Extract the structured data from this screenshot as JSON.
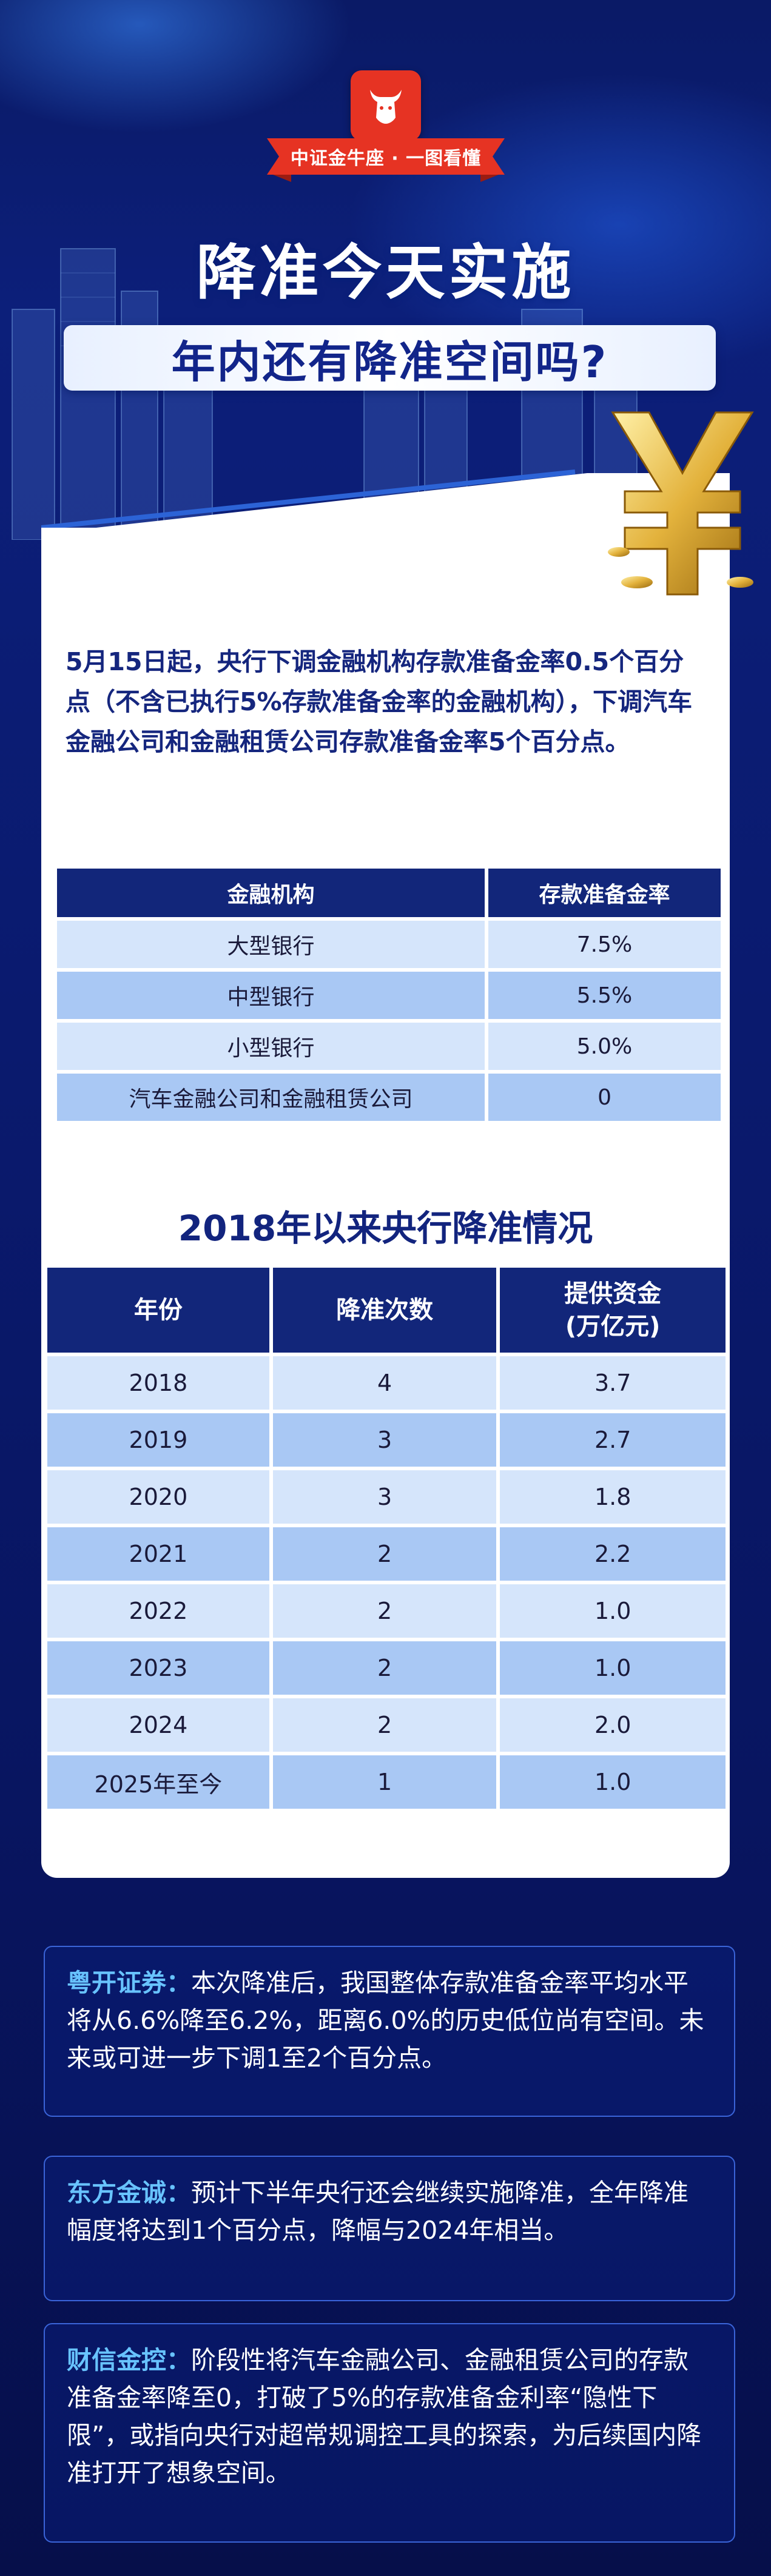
{
  "header": {
    "brand_ribbon": "中证金牛座 · 一图看懂",
    "title_line1": "降准今天实施",
    "title_line2": "年内还有降准空间吗?"
  },
  "intro": "5月15日起，央行下调金融机构存款准备金率0.5个百分点（不含已执行5%存款准备金率的金融机构），下调汽车金融公司和金融租赁公司存款准备金率5个百分点。",
  "table1": {
    "headers": [
      "金融机构",
      "存款准备金率"
    ],
    "rows": [
      [
        "大型银行",
        "7.5%"
      ],
      [
        "中型银行",
        "5.5%"
      ],
      [
        "小型银行",
        "5.0%"
      ],
      [
        "汽车金融公司和金融租赁公司",
        "0"
      ]
    ]
  },
  "section2_title": "2018年以来央行降准情况",
  "table2": {
    "headers": [
      "年份",
      "降准次数",
      "提供资金",
      "(万亿元)"
    ],
    "rows": [
      [
        "2018",
        "4",
        "3.7"
      ],
      [
        "2019",
        "3",
        "2.7"
      ],
      [
        "2020",
        "3",
        "1.8"
      ],
      [
        "2021",
        "2",
        "2.2"
      ],
      [
        "2022",
        "2",
        "1.0"
      ],
      [
        "2023",
        "2",
        "1.0"
      ],
      [
        "2024",
        "2",
        "2.0"
      ],
      [
        "2025年至今",
        "1",
        "1.0"
      ]
    ]
  },
  "quotes": [
    {
      "source": "粤开证券：",
      "text": "本次降准后，我国整体存款准备金率平均水平将从6.6%降至6.2%，距离6.0%的历史低位尚有空间。未来或可进一步下调1至2个百分点。"
    },
    {
      "source": "东方金诚：",
      "text": "预计下半年央行还会继续实施降准，全年降准幅度将达到1个百分点，降幅与2024年相当。"
    },
    {
      "source": "财信金控：",
      "text": "阶段性将汽车金融公司、金融租赁公司的存款准备金率降至0，打破了5%的存款准备金利率“隐性下限”，或指向央行对超常规调控工具的探索，为后续国内降准打开了想象空间。"
    }
  ],
  "colors": {
    "navy": "#12267a",
    "row_light": "#d5e5fb",
    "row_dark": "#a9c8f4",
    "logo_red": "#e63323",
    "quote_source": "#68c3ff"
  }
}
